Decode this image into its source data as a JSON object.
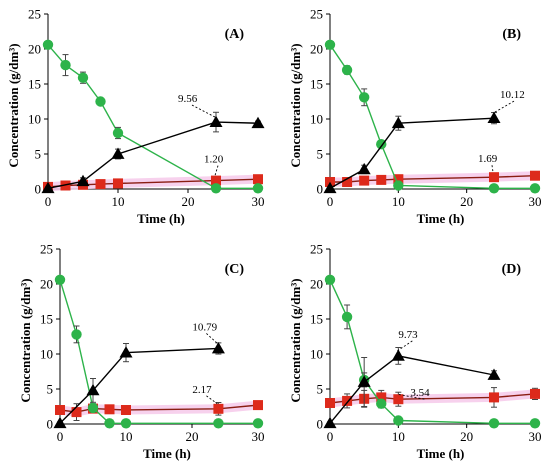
{
  "figure": {
    "background": "#ffffff"
  },
  "chart_data": [
    {
      "type": "line",
      "panel_label": "(A)",
      "xlabel": "Time (h)",
      "ylabel": "Concentration (g/dm³)",
      "xlim": [
        0,
        30
      ],
      "ylim": [
        0,
        25
      ],
      "xticks": [
        "0",
        "10",
        "20",
        "30"
      ],
      "yticks": [
        "0",
        "5",
        "10",
        "15",
        "20",
        "25"
      ],
      "grid": false,
      "legend": "none",
      "series": [
        {
          "color": "#2db34a",
          "marker": "circle",
          "x": [
            0,
            2.5,
            5,
            7.5,
            10,
            24,
            30
          ],
          "y": [
            20.6,
            17.7,
            15.9,
            12.5,
            8.0,
            0.1,
            0.1
          ],
          "err": [
            0.4,
            1.5,
            0.8,
            0.3,
            0.8,
            0.2,
            0.2
          ]
        },
        {
          "color": "#000000",
          "marker": "triangle",
          "x": [
            0,
            5,
            10,
            24,
            30
          ],
          "y": [
            0.1,
            1.1,
            5.0,
            9.56,
            9.4
          ],
          "err": [
            0.2,
            0.5,
            0.7,
            1.4,
            0.3
          ]
        },
        {
          "color": "#dd2a1b",
          "marker": "square",
          "x": [
            0,
            2.5,
            5,
            7.5,
            10,
            24,
            30
          ],
          "y": [
            0.3,
            0.5,
            0.6,
            0.7,
            0.8,
            1.2,
            1.4
          ],
          "err": [
            0.1,
            0.1,
            0.1,
            0.1,
            0.1,
            0.2,
            0.2
          ]
        }
      ],
      "annotations": [
        {
          "text": "9.56",
          "x": 24,
          "y": 9.56
        },
        {
          "text": "1.20",
          "x": 24,
          "y": 1.2
        }
      ]
    },
    {
      "type": "line",
      "panel_label": "(B)",
      "xlabel": "Time (h)",
      "ylabel": "Concentration (g/dm³)",
      "xlim": [
        0,
        30
      ],
      "ylim": [
        0,
        25
      ],
      "xticks": [
        "0",
        "10",
        "20",
        "30"
      ],
      "yticks": [
        "0",
        "5",
        "10",
        "15",
        "20",
        "25"
      ],
      "grid": false,
      "legend": "none",
      "series": [
        {
          "color": "#2db34a",
          "marker": "circle",
          "x": [
            0,
            2.5,
            5,
            7.5,
            10,
            24,
            30
          ],
          "y": [
            20.6,
            17.0,
            13.1,
            6.4,
            0.5,
            0.1,
            0.1
          ],
          "err": [
            0.4,
            0.6,
            1.2,
            0.5,
            0.3,
            0.1,
            0.1
          ]
        },
        {
          "color": "#000000",
          "marker": "triangle",
          "x": [
            0,
            5,
            10,
            24
          ],
          "y": [
            0.1,
            2.8,
            9.4,
            10.12
          ],
          "err": [
            0.2,
            0.6,
            1.0,
            0.8
          ]
        },
        {
          "color": "#dd2a1b",
          "marker": "square",
          "x": [
            0,
            2.5,
            5,
            7.5,
            10,
            24,
            30
          ],
          "y": [
            1.0,
            1.0,
            1.2,
            1.3,
            1.4,
            1.69,
            1.9
          ],
          "err": [
            0.1,
            0.1,
            0.1,
            0.1,
            0.1,
            0.2,
            0.2
          ]
        }
      ],
      "annotations": [
        {
          "text": "10.12",
          "x": 24,
          "y": 10.12
        },
        {
          "text": "1.69",
          "x": 24,
          "y": 1.69
        }
      ]
    },
    {
      "type": "line",
      "panel_label": "(C)",
      "xlabel": "Time (h)",
      "ylabel": "Concentration (g/dm³)",
      "xlim": [
        0,
        30
      ],
      "ylim": [
        0,
        25
      ],
      "xticks": [
        "0",
        "10",
        "20",
        "30"
      ],
      "yticks": [
        "0",
        "5",
        "10",
        "15",
        "20",
        "25"
      ],
      "grid": false,
      "legend": "none",
      "series": [
        {
          "color": "#2db34a",
          "marker": "circle",
          "x": [
            0,
            2.5,
            5,
            7.5,
            10,
            24,
            30
          ],
          "y": [
            20.6,
            12.8,
            2.3,
            0.1,
            0.1,
            0.1,
            0.1
          ],
          "err": [
            0.4,
            1.2,
            0.6,
            0.1,
            0.1,
            0.1,
            0.1
          ]
        },
        {
          "color": "#000000",
          "marker": "triangle",
          "x": [
            0,
            5,
            10,
            24
          ],
          "y": [
            0.1,
            4.8,
            10.2,
            10.79
          ],
          "err": [
            0.2,
            1.7,
            1.3,
            0.8
          ]
        },
        {
          "color": "#dd2a1b",
          "marker": "square",
          "x": [
            0,
            2.5,
            5,
            7.5,
            10,
            24,
            30
          ],
          "y": [
            2.0,
            1.7,
            2.2,
            2.1,
            2.0,
            2.17,
            2.7
          ],
          "err": [
            0.2,
            1.2,
            0.6,
            0.3,
            0.4,
            0.9,
            0.3
          ]
        }
      ],
      "annotations": [
        {
          "text": "10.79",
          "x": 24,
          "y": 10.79
        },
        {
          "text": "2.17",
          "x": 24,
          "y": 2.17
        }
      ]
    },
    {
      "type": "line",
      "panel_label": "(D)",
      "xlabel": "Time (h)",
      "ylabel": "Concentration (g/dm³)",
      "xlim": [
        0,
        30
      ],
      "ylim": [
        0,
        25
      ],
      "xticks": [
        "0",
        "10",
        "20",
        "30"
      ],
      "yticks": [
        "0",
        "5",
        "10",
        "15",
        "20",
        "25"
      ],
      "grid": false,
      "legend": "none",
      "series": [
        {
          "color": "#2db34a",
          "marker": "circle",
          "x": [
            0,
            2.5,
            5,
            7.5,
            10,
            24,
            30
          ],
          "y": [
            20.6,
            15.3,
            6.3,
            2.9,
            0.5,
            0.1,
            0.1
          ],
          "err": [
            0.4,
            1.7,
            1.0,
            0.6,
            0.3,
            0.1,
            0.1
          ]
        },
        {
          "color": "#000000",
          "marker": "triangle",
          "x": [
            0,
            5,
            10,
            24
          ],
          "y": [
            0.1,
            6.0,
            9.73,
            7.0
          ],
          "err": [
            0.2,
            3.5,
            1.2,
            0.6
          ]
        },
        {
          "color": "#dd2a1b",
          "marker": "square",
          "x": [
            0,
            2.5,
            5,
            7.5,
            10,
            24,
            30
          ],
          "y": [
            3.0,
            3.3,
            3.6,
            3.8,
            3.54,
            3.8,
            4.3
          ],
          "err": [
            0.5,
            1.0,
            1.2,
            1.0,
            1.0,
            1.4,
            0.8
          ]
        }
      ],
      "annotations": [
        {
          "text": "9.73",
          "x": 10,
          "y": 9.73
        },
        {
          "text": "3.54",
          "x": 10,
          "y": 3.54
        }
      ]
    }
  ]
}
